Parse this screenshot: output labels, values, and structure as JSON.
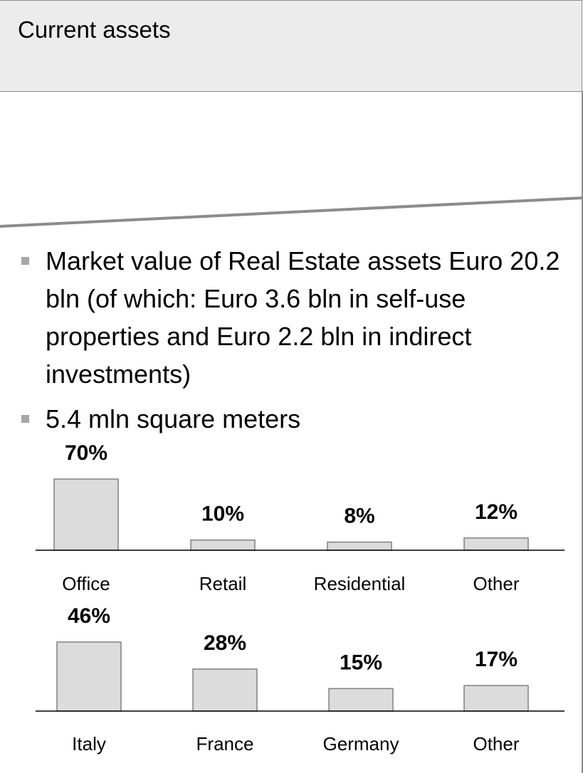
{
  "header": {
    "title": "Current assets"
  },
  "bullets": [
    "Market value of Real Estate assets Euro 20.2 bln (of which: Euro 3.6 bln in self-use properties and Euro 2.2 bln in indirect investments)",
    "5.4 mln square meters"
  ],
  "chart_data": [
    {
      "type": "bar",
      "categories": [
        "Office",
        "Retail",
        "Residential",
        "Other"
      ],
      "values": [
        70,
        10,
        8,
        12
      ],
      "value_labels": [
        "70%",
        "10%",
        "8%",
        "12%"
      ],
      "color": "#dcdcdc",
      "ylim": [
        0,
        70
      ]
    },
    {
      "type": "bar",
      "categories": [
        "Italy",
        "France",
        "Germany",
        "Other"
      ],
      "values": [
        46,
        28,
        15,
        17
      ],
      "value_labels": [
        "46%",
        "28%",
        "15%",
        "17%"
      ],
      "color": "#dcdcdc",
      "ylim": [
        0,
        46
      ]
    }
  ]
}
